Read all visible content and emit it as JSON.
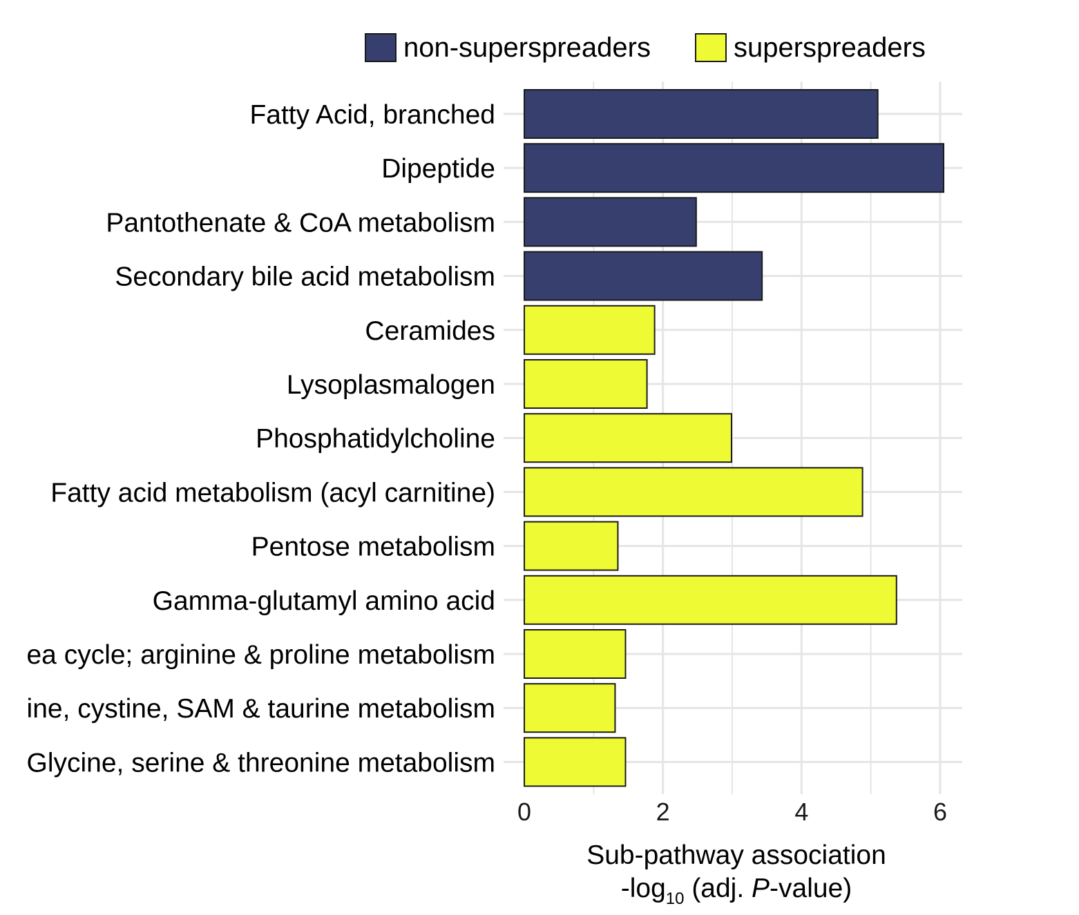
{
  "chart_data": {
    "type": "bar",
    "orientation": "horizontal",
    "categories": [
      "Fatty Acid, branched",
      "Dipeptide",
      "Pantothenate & CoA metabolism",
      "Secondary bile acid metabolism",
      "Ceramides",
      "Lysoplasmalogen",
      "Phosphatidylcholine",
      "Fatty acid metabolism (acyl carnitine)",
      "Pentose metabolism",
      "Gamma-glutamyl amino acid",
      "ea cycle; arginine & proline metabolism",
      "ine, cystine, SAM & taurine metabolism",
      "Glycine, serine & threonine metabolism"
    ],
    "values": [
      5.1,
      6.05,
      2.48,
      3.43,
      1.88,
      1.77,
      2.99,
      4.88,
      1.35,
      5.37,
      1.46,
      1.31,
      1.46
    ],
    "groups": [
      "non-superspreaders",
      "non-superspreaders",
      "non-superspreaders",
      "non-superspreaders",
      "superspreaders",
      "superspreaders",
      "superspreaders",
      "superspreaders",
      "superspreaders",
      "superspreaders",
      "superspreaders",
      "superspreaders",
      "superspreaders"
    ],
    "series": [
      {
        "name": "non-superspreaders",
        "color": "#363f6e"
      },
      {
        "name": "superspreaders",
        "color": "#eefa34"
      }
    ],
    "xlim": [
      0,
      6.3
    ],
    "xticks": [
      "0",
      "2",
      "4",
      "6"
    ],
    "xlabel_line1": "Sub-pathway association",
    "xlabel_line2_prefix": "-log",
    "xlabel_line2_sub": "10",
    "xlabel_line2_mid": " (adj. ",
    "xlabel_line2_italic": "P",
    "xlabel_line2_suffix": "-value)",
    "legend_position": "top",
    "grid": true
  }
}
